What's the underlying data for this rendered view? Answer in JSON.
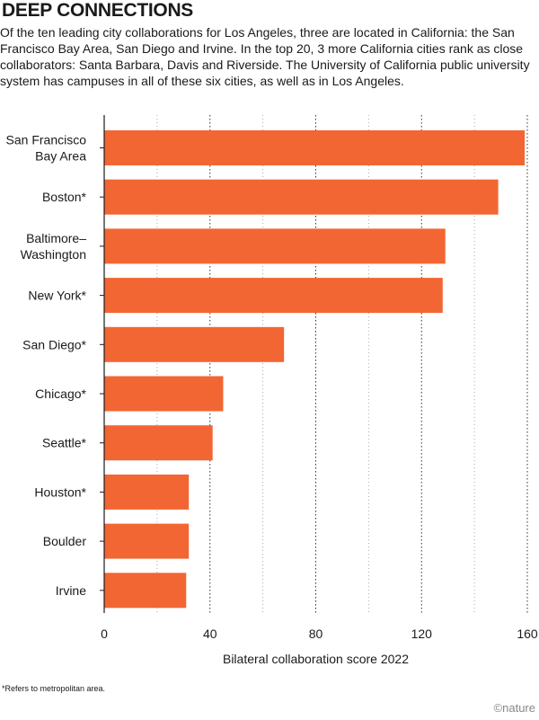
{
  "header": {
    "title": "DEEP CONNECTIONS",
    "subtitle": "Of the ten leading city collaborations for Los Angeles, three are located in California: the San Francisco Bay Area, San Diego and Irvine. In the top 20, 3 more California cities rank as close collaborators: Santa Barbara, Davis and Riverside. The University of California public university system has campuses in all of these six cities, as well as in Los Angeles."
  },
  "footer": {
    "footnote": "*Refers to metropolitan area.",
    "credit": "©nature"
  },
  "chart_data": {
    "type": "bar",
    "orientation": "horizontal",
    "categories": [
      "San Francisco Bay Area",
      "Boston*",
      "Baltimore–Washington",
      "New York*",
      "San Diego*",
      "Chicago*",
      "Seattle*",
      "Houston*",
      "Boulder",
      "Irvine"
    ],
    "category_lines": [
      [
        "San Francisco",
        "Bay Area"
      ],
      [
        "Boston*"
      ],
      [
        "Baltimore–",
        "Washington"
      ],
      [
        "New York*"
      ],
      [
        "San Diego*"
      ],
      [
        "Chicago*"
      ],
      [
        "Seattle*"
      ],
      [
        "Houston*"
      ],
      [
        "Boulder"
      ],
      [
        "Irvine"
      ]
    ],
    "values": [
      159,
      149,
      129,
      128,
      68,
      45,
      41,
      32,
      32,
      31
    ],
    "xlabel": "Bilateral collaboration score 2022",
    "xlim": [
      0,
      160
    ],
    "xticks": [
      0,
      40,
      80,
      120,
      160
    ],
    "grid": true,
    "bar_color": "#f26633"
  }
}
